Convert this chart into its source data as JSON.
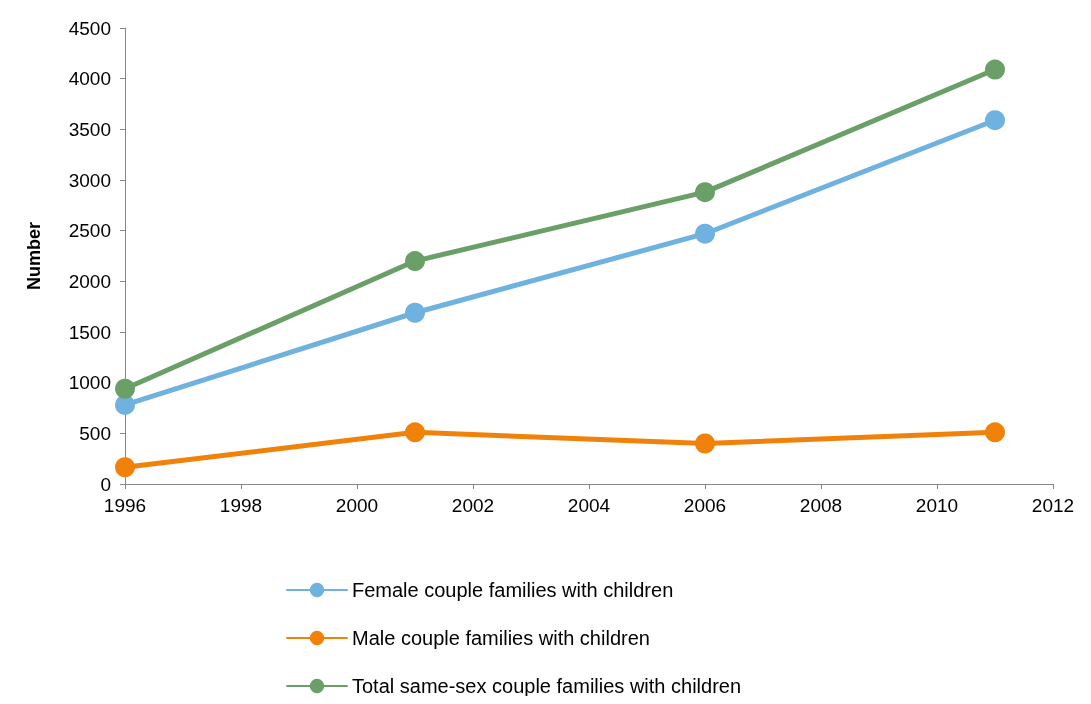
{
  "chart_data": {
    "type": "line",
    "ylabel": "Number",
    "x": [
      1996,
      2001,
      2006,
      2011
    ],
    "series": [
      {
        "name": "Female couple families with children",
        "color": "#6fb1df",
        "values": [
          780,
          1690,
          2470,
          3590
        ]
      },
      {
        "name": "Male couple families with children",
        "color": "#f0820a",
        "values": [
          165,
          510,
          400,
          510
        ]
      },
      {
        "name": "Total same-sex couple families with children",
        "color": "#6a9f68",
        "values": [
          940,
          2200,
          2880,
          4090
        ]
      }
    ],
    "xlim": [
      1996,
      2012
    ],
    "xticks": [
      1996,
      1998,
      2000,
      2002,
      2004,
      2006,
      2008,
      2010,
      2012
    ],
    "ylim": [
      0,
      4500
    ],
    "yticks": [
      0,
      500,
      1000,
      1500,
      2000,
      2500,
      3000,
      3500,
      4000,
      4500
    ],
    "grid": false,
    "legend": "bottom",
    "marker": "circle",
    "line_style": "solid"
  }
}
